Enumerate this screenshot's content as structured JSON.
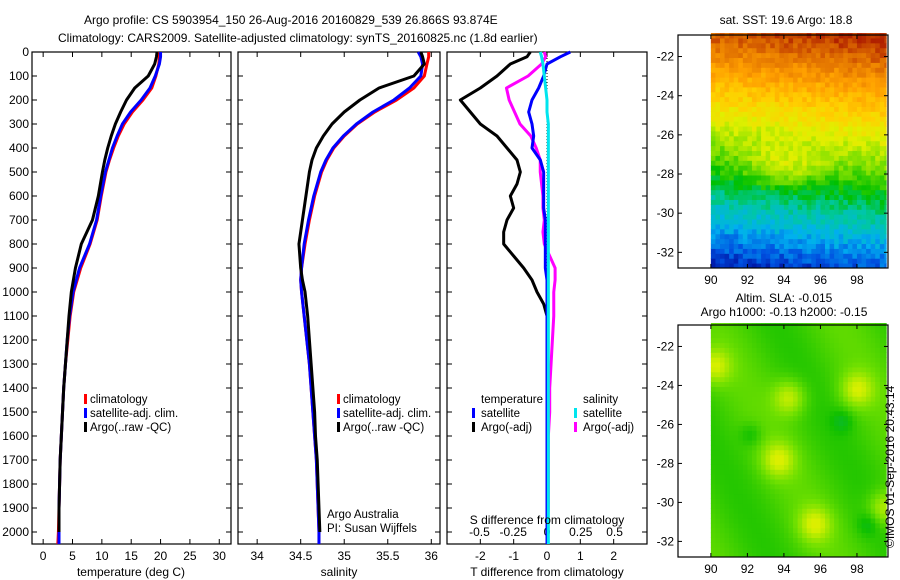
{
  "header": {
    "line1": "Argo profile: CS 5903954_150 26-Aug-2016 20160829_539 26.866S 93.874E",
    "line2": "Climatology: CARS2009. Satellite-adjusted climatology: synTS_20160825.nc (1.8d earlier)"
  },
  "colors": {
    "climatology": "#ff0000",
    "satellite": "#0000ff",
    "argo": "#000000",
    "sal_satellite": "#00e5ee",
    "sal_argo": "#ff00ff"
  },
  "chart_data": [
    {
      "id": "temperature",
      "type": "line",
      "xlabel": "temperature (deg C)",
      "ylabel": "",
      "xlim": [
        -1.9,
        32
      ],
      "ylim": [
        2050,
        0
      ],
      "xticks": [
        0,
        5,
        10,
        15,
        20,
        25,
        30
      ],
      "yticks": [
        0,
        100,
        200,
        300,
        400,
        500,
        600,
        700,
        800,
        900,
        1000,
        1100,
        1200,
        1300,
        1400,
        1500,
        1600,
        1700,
        1800,
        1900,
        2000
      ],
      "legend": [
        "climatology",
        "satellite-adj. clim.",
        "Argo(..raw -QC)"
      ],
      "depth": [
        0,
        20,
        50,
        100,
        150,
        200,
        250,
        300,
        350,
        400,
        450,
        500,
        600,
        700,
        800,
        900,
        1000,
        1100,
        1200,
        1300,
        1400,
        1500,
        1600,
        1700,
        1800,
        1900,
        2000,
        2050
      ],
      "series": [
        {
          "name": "climatology",
          "values": [
            19.8,
            19.8,
            19.7,
            19.2,
            18.5,
            17.0,
            15.2,
            13.8,
            12.8,
            12.0,
            11.3,
            10.7,
            9.9,
            9.2,
            8.0,
            6.4,
            5.2,
            4.6,
            4.2,
            3.8,
            3.5,
            3.3,
            3.1,
            2.9,
            2.8,
            2.7,
            2.6,
            2.5
          ]
        },
        {
          "name": "satellite-adj. clim.",
          "values": [
            20.0,
            20.0,
            19.8,
            19.1,
            18.2,
            16.7,
            14.9,
            13.5,
            12.6,
            11.8,
            11.2,
            10.6,
            9.8,
            9.1,
            7.9,
            6.2,
            5.1,
            4.5,
            4.1,
            3.8,
            3.5,
            3.3,
            3.1,
            2.9,
            2.8,
            2.7,
            2.7,
            2.7
          ]
        },
        {
          "name": "Argo(..raw -QC)",
          "values": [
            19.4,
            19.3,
            19.0,
            17.9,
            15.6,
            14.2,
            13.2,
            12.3,
            11.6,
            11.0,
            10.5,
            10.1,
            9.4,
            8.4,
            6.5,
            5.5,
            4.8,
            4.4,
            4.1,
            3.8,
            3.5,
            3.3,
            3.1,
            2.9,
            2.8,
            2.7,
            2.7,
            null
          ]
        }
      ]
    },
    {
      "id": "salinity",
      "type": "line",
      "xlabel": "salinity",
      "xlim": [
        33.78,
        36.1
      ],
      "ylim": [
        2050,
        0
      ],
      "xticks": [
        34,
        34.5,
        35,
        35.5,
        36
      ],
      "xticklabels": [
        "34",
        "34.5",
        "35",
        "35.5",
        "36"
      ],
      "legend": [
        "climatology",
        "satellite-adj. clim.",
        "Argo(..raw -QC)"
      ],
      "annotation": [
        "Argo Australia",
        "PI: Susan Wijffels"
      ],
      "depth": [
        0,
        20,
        50,
        100,
        150,
        200,
        250,
        300,
        350,
        400,
        450,
        500,
        600,
        700,
        800,
        900,
        950,
        1000,
        1100,
        1200,
        1300,
        1400,
        1500,
        1600,
        1700,
        1800,
        1900,
        2000,
        2050
      ],
      "series": [
        {
          "name": "climatology",
          "values": [
            35.97,
            35.97,
            35.95,
            35.92,
            35.8,
            35.6,
            35.35,
            35.15,
            35.0,
            34.88,
            34.8,
            34.74,
            34.66,
            34.6,
            34.55,
            34.51,
            34.5,
            34.51,
            34.54,
            34.57,
            34.6,
            34.62,
            34.64,
            34.66,
            34.68,
            34.69,
            34.7,
            34.71,
            34.71
          ]
        },
        {
          "name": "satellite-adj. clim.",
          "values": [
            35.85,
            35.88,
            35.9,
            35.88,
            35.75,
            35.57,
            35.33,
            35.14,
            34.99,
            34.87,
            34.79,
            34.73,
            34.65,
            34.59,
            34.54,
            34.51,
            34.5,
            34.51,
            34.54,
            34.57,
            34.6,
            34.62,
            34.64,
            34.66,
            34.68,
            34.69,
            34.7,
            34.71,
            34.71
          ]
        },
        {
          "name": "Argo(..raw -QC)",
          "values": [
            35.88,
            35.9,
            35.92,
            35.8,
            35.4,
            35.18,
            35.0,
            34.86,
            34.76,
            34.68,
            34.63,
            34.6,
            34.56,
            34.52,
            34.48,
            34.5,
            34.52,
            34.55,
            34.58,
            34.6,
            34.62,
            34.64,
            34.66,
            34.67,
            34.69,
            34.7,
            34.71,
            34.72,
            null
          ]
        }
      ]
    },
    {
      "id": "difference",
      "type": "line",
      "xlabel": "T difference from climatology",
      "x2label": "S difference from climatology",
      "xlim_T": [
        -3,
        3
      ],
      "xlim_S": [
        -0.74,
        0.74
      ],
      "ylim": [
        2050,
        0
      ],
      "xticks_T": [
        -2,
        -1,
        0,
        1,
        2
      ],
      "xticks_S": [
        -0.5,
        -0.25,
        0,
        0.25,
        0.5
      ],
      "xticklabels_S": [
        "-0.5",
        "-0.25",
        "0",
        "0.25",
        "0.5"
      ],
      "legend": {
        "temperature_title": "temperature",
        "salinity_title": "salinity",
        "temperature": [
          "satellite",
          "Argo(-adj)"
        ],
        "salinity": [
          "satellite",
          "Argo(-adj)"
        ]
      },
      "depth": [
        0,
        20,
        50,
        100,
        150,
        200,
        250,
        300,
        350,
        400,
        450,
        500,
        550,
        600,
        650,
        700,
        750,
        800,
        850,
        900,
        950,
        1000,
        1050,
        1100,
        1200,
        1300,
        1400,
        1500,
        1600,
        1700,
        1800,
        1900,
        2000,
        2050
      ],
      "series": [
        {
          "name": "T satellite",
          "axis": "T",
          "values": [
            0.7,
            0.4,
            0.0,
            -0.1,
            -0.25,
            -0.45,
            -0.55,
            -0.45,
            -0.4,
            -0.45,
            -0.2,
            -0.1,
            -0.1,
            -0.1,
            -0.1,
            -0.05,
            -0.05,
            -0.05,
            -0.05,
            -0.05,
            0.0,
            0.0,
            0.0,
            0.0,
            0.0,
            0.0,
            0.0,
            0.0,
            0.0,
            0.0,
            0.0,
            0.0,
            0.0,
            0.0
          ]
        },
        {
          "name": "T Argo(-adj)",
          "axis": "T",
          "values": [
            -0.5,
            -0.6,
            -1.1,
            -1.5,
            -2.0,
            -2.6,
            -2.3,
            -2.0,
            -1.5,
            -1.2,
            -0.9,
            -0.8,
            -0.9,
            -1.1,
            -1.0,
            -1.2,
            -1.3,
            -1.3,
            -1.0,
            -0.7,
            -0.45,
            -0.3,
            -0.1,
            0.0,
            0.0,
            0.0,
            0.0,
            0.0,
            0.0,
            0.0,
            0.0,
            0.0,
            0.0,
            null
          ]
        },
        {
          "name": "S satellite",
          "axis": "S",
          "values": [
            -0.05,
            -0.04,
            -0.03,
            -0.02,
            -0.01,
            0.0,
            0.0,
            0.01,
            0.01,
            0.01,
            0.01,
            0.01,
            0.01,
            0.01,
            0.01,
            0.01,
            0.01,
            0.01,
            0.01,
            0.01,
            0.01,
            0.01,
            0.01,
            0.01,
            0.01,
            0.01,
            0.01,
            0.01,
            0.01,
            0.01,
            0.01,
            0.01,
            0.01,
            0.01
          ]
        },
        {
          "name": "S Argo(-adj)",
          "axis": "S",
          "values": [
            -0.02,
            -0.01,
            -0.04,
            -0.14,
            -0.3,
            -0.28,
            -0.24,
            -0.2,
            -0.12,
            -0.08,
            -0.05,
            -0.05,
            -0.04,
            -0.03,
            -0.03,
            -0.02,
            -0.03,
            -0.02,
            0.02,
            0.06,
            0.06,
            0.05,
            0.05,
            0.05,
            0.04,
            0.03,
            0.02,
            0.02,
            0.01,
            0.01,
            0.01,
            0.01,
            0.0,
            null
          ]
        }
      ]
    },
    {
      "id": "sst-map",
      "type": "heatmap",
      "title": "sat. SST: 19.6 Argo: 18.8",
      "xlim": [
        88.2,
        99.7
      ],
      "ylim": [
        -32.8,
        -20.9
      ],
      "data_xlim": [
        90,
        99.6
      ],
      "xticks": [
        90,
        92,
        94,
        96,
        98
      ],
      "yticks": [
        -22,
        -24,
        -26,
        -28,
        -30,
        -32
      ],
      "colormap": [
        "#00008f",
        "#0050e0",
        "#00b0f0",
        "#00c8a0",
        "#00c000",
        "#80e000",
        "#e0f000",
        "#ffd000",
        "#ffa000",
        "#e07000",
        "#b02000"
      ]
    },
    {
      "id": "sla-map",
      "type": "heatmap",
      "title": [
        "Altim. SLA: -0.015",
        "Argo h1000: -0.13 h2000: -0.15"
      ],
      "xlim": [
        88.2,
        99.7
      ],
      "ylim": [
        -32.8,
        -20.9
      ],
      "data_xlim": [
        90,
        99.6
      ],
      "xticks": [
        90,
        92,
        94,
        96,
        98
      ],
      "yticks": [
        -22,
        -24,
        -26,
        -28,
        -30,
        -32
      ],
      "highs": [
        [
          93.7,
          -27.8
        ],
        [
          95.7,
          -31.1
        ],
        [
          94.3,
          -24.6
        ],
        [
          98.0,
          -24.2
        ],
        [
          90.2,
          -23.0
        ],
        [
          99.5,
          -30.3
        ]
      ],
      "lows": [
        [
          98.6,
          -31.1
        ],
        [
          97.2,
          -25.8
        ],
        [
          92.2,
          -26.5
        ]
      ]
    }
  ],
  "footer": {
    "copyright": "©IMOS 01-Sep-2016 20:43:14"
  }
}
